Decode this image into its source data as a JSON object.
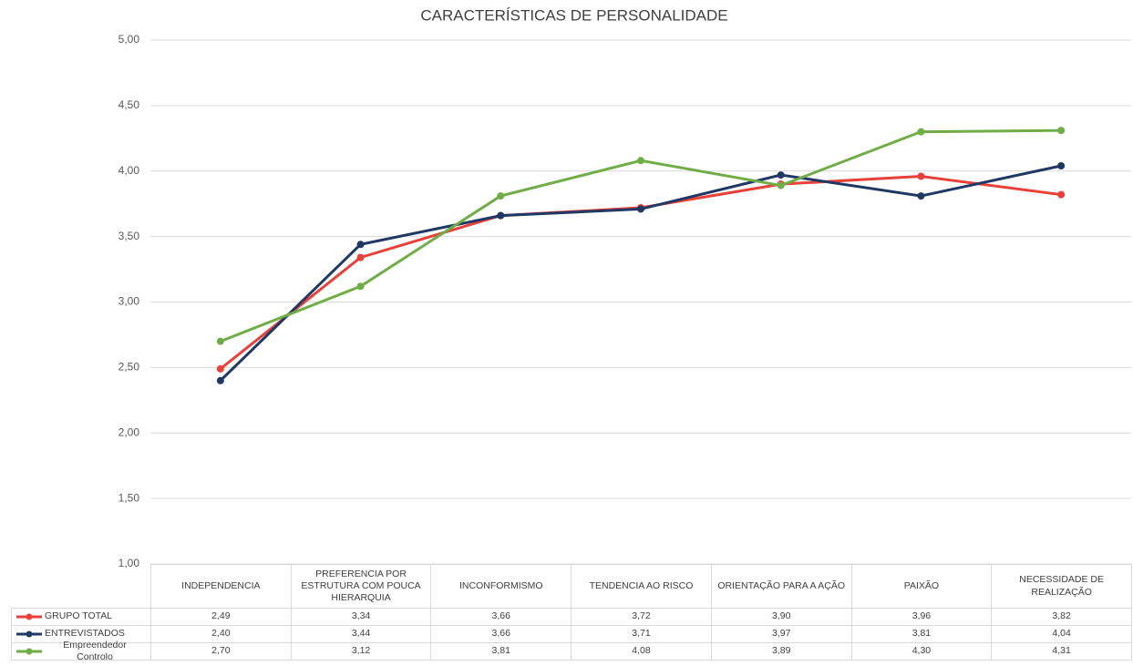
{
  "chart_data": {
    "type": "line",
    "title": "CARACTERÍSTICAS DE PERSONALIDADE",
    "categories": [
      "INDEPENDENCIA",
      "PREFERENCIA POR ESTRUTURA COM POUCA HIERARQUIA",
      "INCONFORMISMO",
      "TENDENCIA AO RISCO",
      "ORIENTAÇÃO PARA A AÇÃO",
      "PAIXÃO",
      "NECESSIDADE DE REALIZAÇÃO"
    ],
    "series": [
      {
        "name": "GRUPO TOTAL",
        "color": "#e8413a",
        "values": [
          2.49,
          3.34,
          3.66,
          3.72,
          3.9,
          3.96,
          3.82
        ],
        "value_labels": [
          "2,49",
          "3,34",
          "3,66",
          "3,72",
          "3,90",
          "3,96",
          "3,82"
        ]
      },
      {
        "name": "ENTREVISTADOS",
        "color": "#1f3864",
        "values": [
          2.4,
          3.44,
          3.66,
          3.71,
          3.97,
          3.81,
          4.04
        ],
        "value_labels": [
          "2,40",
          "3,44",
          "3,66",
          "3,71",
          "3,97",
          "3,81",
          "4,04"
        ]
      },
      {
        "name": "Empreendedor Controlo",
        "color": "#70ad47",
        "values": [
          2.7,
          3.12,
          3.81,
          4.08,
          3.89,
          4.3,
          4.31
        ],
        "value_labels": [
          "2,70",
          "3,12",
          "3,81",
          "4,08",
          "3,89",
          "4,30",
          "4,31"
        ]
      }
    ],
    "ylim": [
      1,
      5
    ],
    "yticks": [
      {
        "value": 1,
        "label": "1,00"
      },
      {
        "value": 1.5,
        "label": "1,50"
      },
      {
        "value": 2,
        "label": "2,00"
      },
      {
        "value": 2.5,
        "label": "2,50"
      },
      {
        "value": 3,
        "label": "3,00"
      },
      {
        "value": 3.5,
        "label": "3,50"
      },
      {
        "value": 4,
        "label": "4,00"
      },
      {
        "value": 4.5,
        "label": "4,50"
      },
      {
        "value": 5,
        "label": "5,00"
      }
    ],
    "grid": true
  }
}
